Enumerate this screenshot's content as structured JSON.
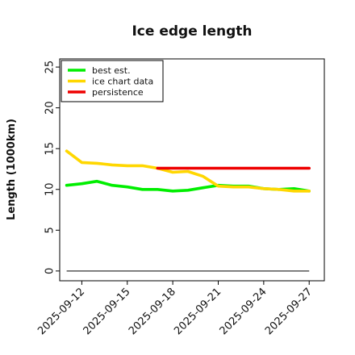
{
  "chart_data": {
    "type": "line",
    "title": "Ice edge length",
    "xlabel": "",
    "ylabel": "Length (1000km)",
    "ylim": [
      -1.2,
      26
    ],
    "yticks": [
      0,
      5,
      10,
      15,
      20,
      25
    ],
    "xlim": [
      "2025-09-10T13:00",
      "2025-09-28T00:00"
    ],
    "xticks": [
      "2025-09-12",
      "2025-09-15",
      "2025-09-18",
      "2025-09-21",
      "2025-09-24",
      "2025-09-27"
    ],
    "grid": false,
    "legend_position": "top-left",
    "baseline": {
      "y": 0,
      "x_range": [
        "2025-09-11",
        "2025-09-27"
      ],
      "color": "#555555"
    },
    "series": [
      {
        "name": "best est.",
        "color": "#00ee00",
        "x": [
          "2025-09-11",
          "2025-09-12",
          "2025-09-13",
          "2025-09-14",
          "2025-09-15",
          "2025-09-16",
          "2025-09-17",
          "2025-09-18",
          "2025-09-19",
          "2025-09-20",
          "2025-09-21",
          "2025-09-22",
          "2025-09-23",
          "2025-09-24",
          "2025-09-25",
          "2025-09-26",
          "2025-09-27"
        ],
        "values": [
          10.5,
          10.7,
          11.0,
          10.5,
          10.3,
          10.0,
          10.0,
          9.8,
          9.9,
          10.2,
          10.5,
          10.4,
          10.4,
          10.1,
          10.0,
          10.1,
          9.8
        ]
      },
      {
        "name": "ice chart data",
        "color": "#ffd700",
        "x": [
          "2025-09-11",
          "2025-09-12",
          "2025-09-13",
          "2025-09-14",
          "2025-09-15",
          "2025-09-16",
          "2025-09-17",
          "2025-09-18",
          "2025-09-19",
          "2025-09-20",
          "2025-09-21",
          "2025-09-22",
          "2025-09-23",
          "2025-09-24",
          "2025-09-25",
          "2025-09-26",
          "2025-09-27"
        ],
        "values": [
          14.7,
          13.3,
          13.2,
          13.0,
          12.9,
          12.9,
          12.6,
          12.1,
          12.2,
          11.6,
          10.4,
          10.3,
          10.3,
          10.1,
          10.0,
          9.8,
          9.8
        ]
      },
      {
        "name": "persistence",
        "color": "#ee0000",
        "x": [
          "2025-09-17",
          "2025-09-27"
        ],
        "values": [
          12.6,
          12.6
        ]
      }
    ]
  }
}
